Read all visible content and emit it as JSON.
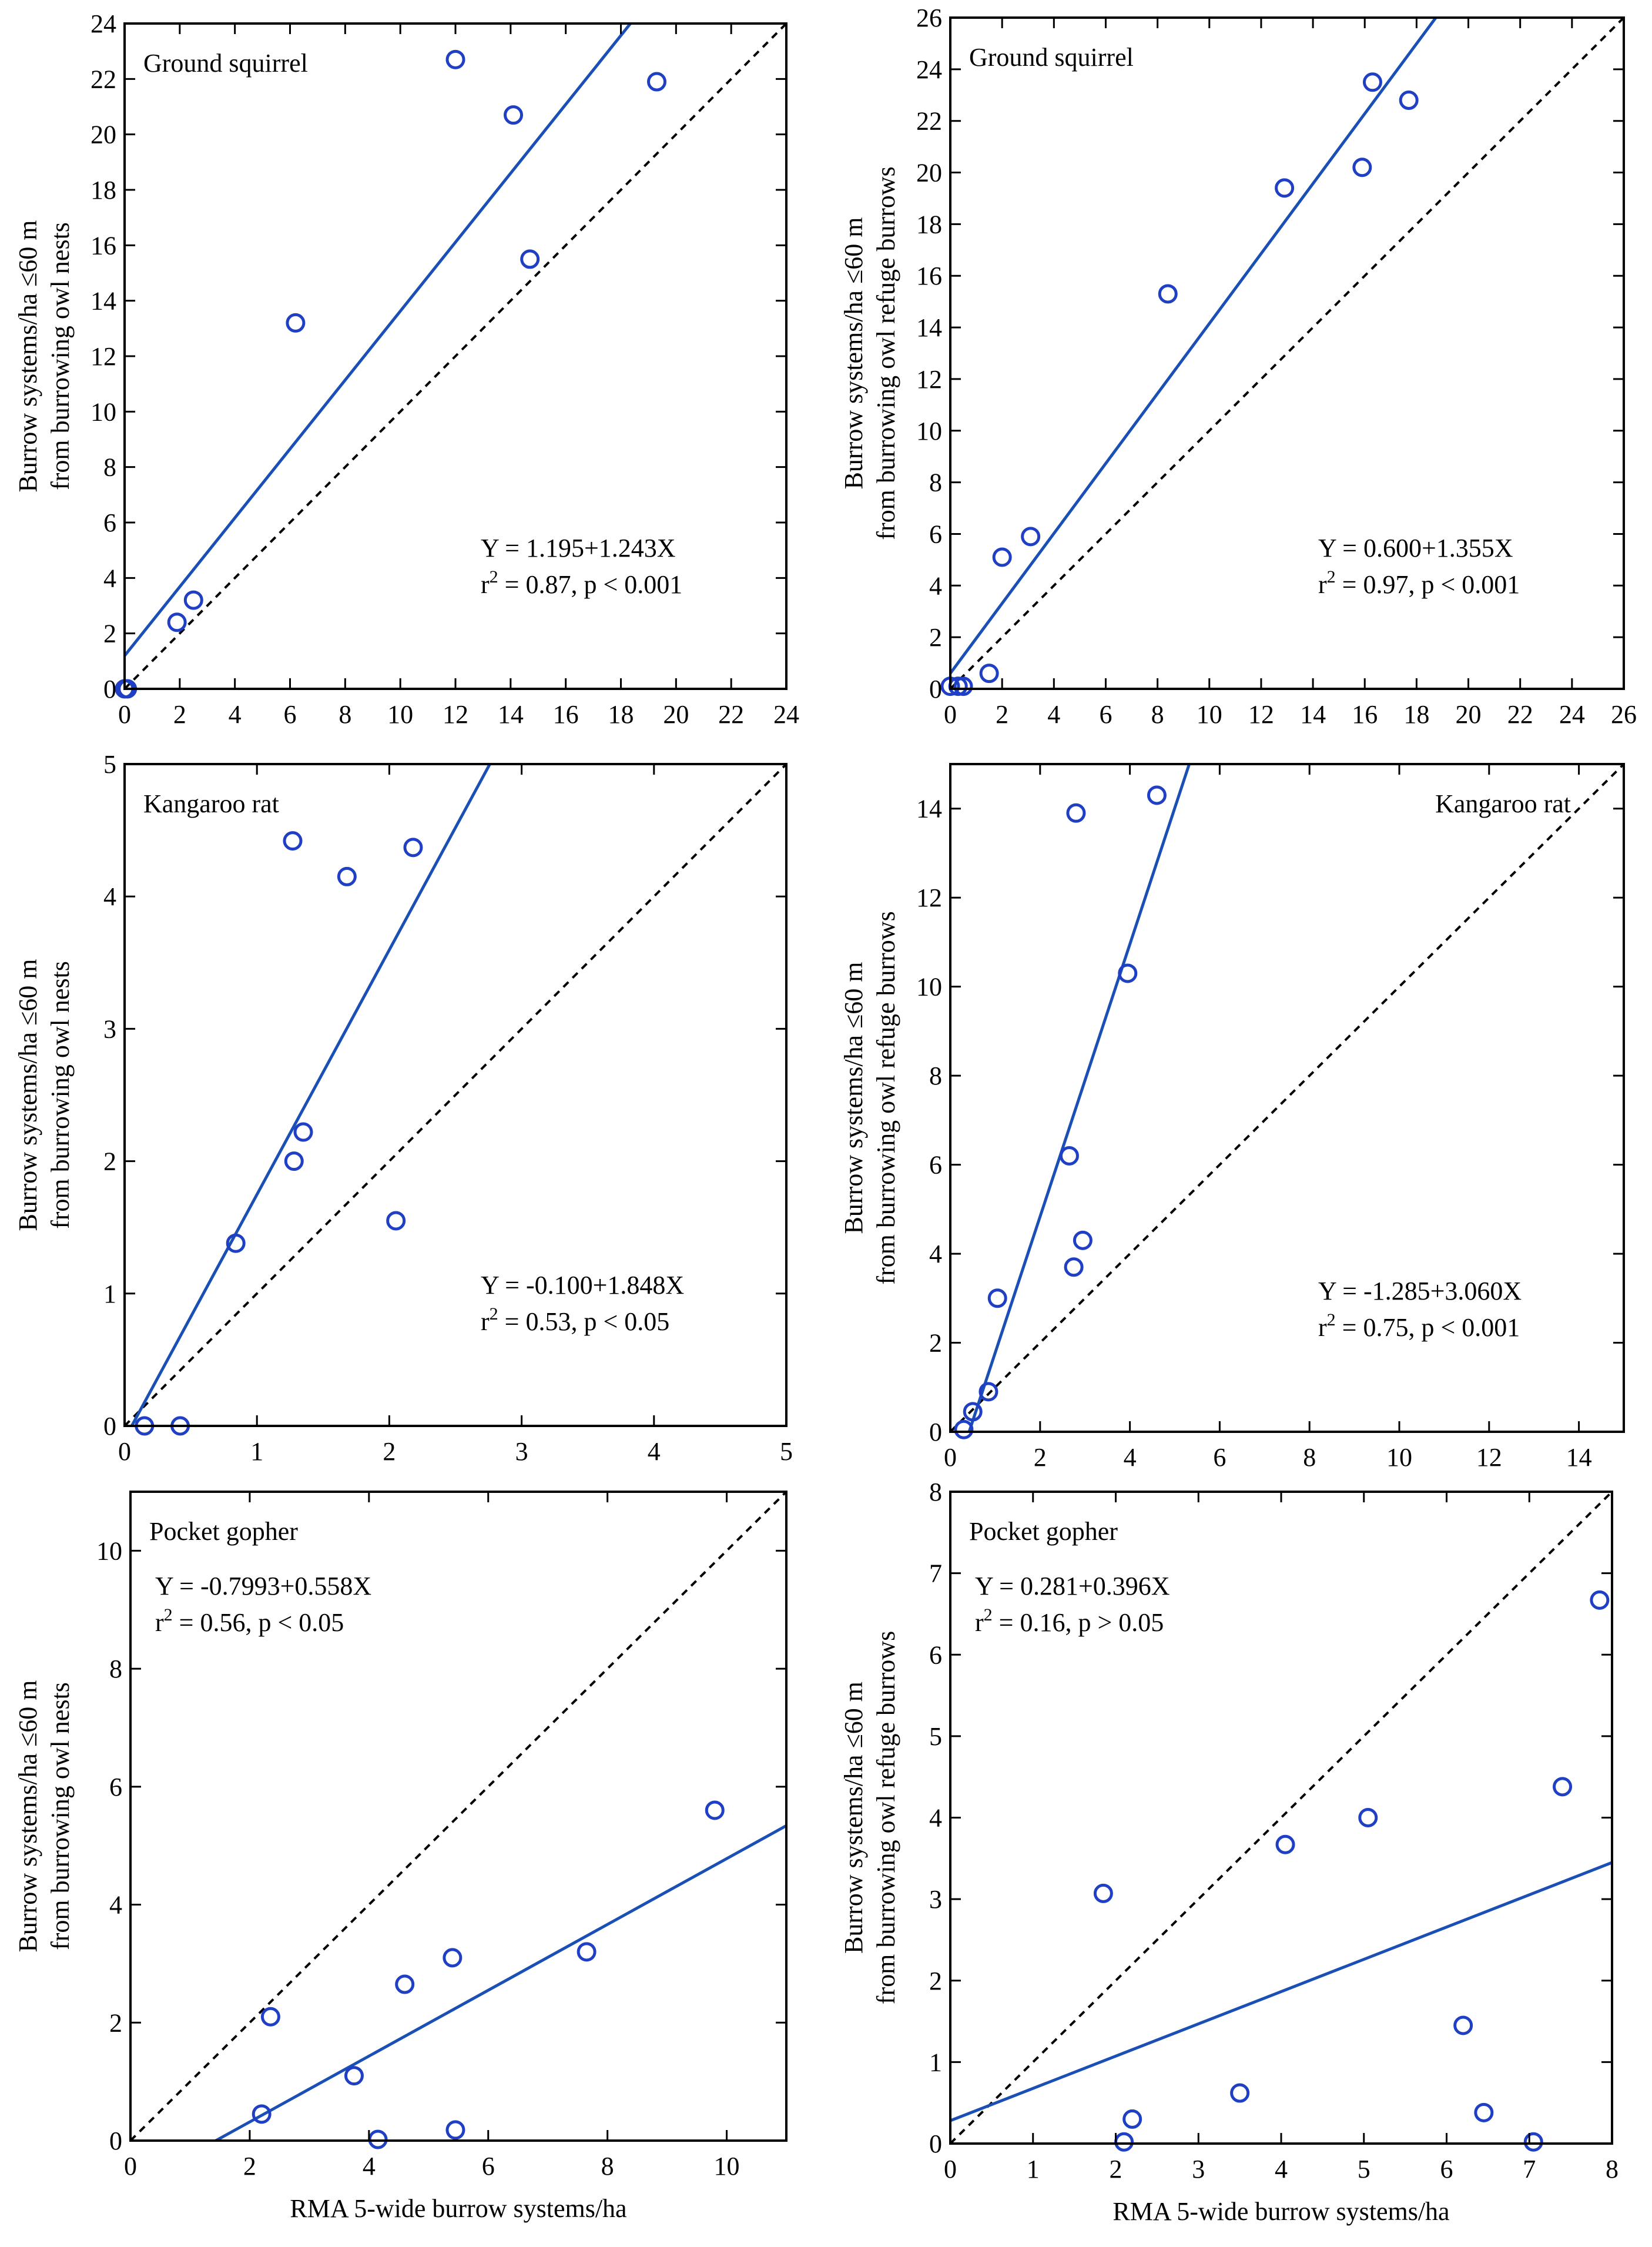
{
  "colors": {
    "marker": "#1f3fc4",
    "fit_line": "#1a4fb5",
    "identity_line": "#000000",
    "axes": "#000000"
  },
  "chart_data": [
    {
      "id": "gs_nests",
      "type": "scatter",
      "title": "Ground squirrel",
      "ylabel": [
        "Burrow systems/ha ≤60 m",
        "from burrowing owl nests"
      ],
      "xlabel": "",
      "xlim": [
        0,
        24
      ],
      "ylim": [
        0,
        24
      ],
      "xticks": [
        0,
        2,
        4,
        6,
        8,
        10,
        12,
        14,
        16,
        18,
        20,
        22,
        24
      ],
      "yticks": [
        0,
        2,
        4,
        6,
        8,
        10,
        12,
        14,
        16,
        18,
        20,
        22,
        24
      ],
      "x": [
        0.0,
        0.1,
        1.9,
        2.5,
        6.2,
        12.0,
        14.1,
        14.7,
        19.3
      ],
      "y": [
        0.0,
        0.0,
        2.4,
        3.2,
        13.2,
        22.7,
        20.7,
        15.5,
        21.9
      ],
      "fit": {
        "intercept": 1.195,
        "slope": 1.243
      },
      "equation": "Y = 1.195+1.243X",
      "r2_prefix": "r",
      "r2_text": " = 0.87, p < 0.001",
      "ann_pos": "bottom-right",
      "title_pos": "top-left"
    },
    {
      "id": "gs_refuge",
      "type": "scatter",
      "title": "Ground squirrel",
      "ylabel": [
        "Burrow systems/ha ≤60 m",
        "from burrowing owl refuge burrows"
      ],
      "xlabel": "",
      "xlim": [
        0,
        26
      ],
      "ylim": [
        0,
        26
      ],
      "xticks": [
        0,
        2,
        4,
        6,
        8,
        10,
        12,
        14,
        16,
        18,
        20,
        22,
        24,
        26
      ],
      "yticks": [
        0,
        2,
        4,
        6,
        8,
        10,
        12,
        14,
        16,
        18,
        20,
        22,
        24,
        26
      ],
      "x": [
        0.0,
        0.3,
        0.5,
        1.5,
        2.0,
        3.1,
        8.4,
        12.9,
        15.9,
        16.3,
        17.7
      ],
      "y": [
        0.1,
        0.1,
        0.1,
        0.6,
        5.1,
        5.9,
        15.3,
        19.4,
        20.2,
        23.5,
        22.8
      ],
      "fit": {
        "intercept": 0.6,
        "slope": 1.355
      },
      "equation": "Y = 0.600+1.355X",
      "r2_prefix": "r",
      "r2_text": " = 0.97, p < 0.001",
      "ann_pos": "bottom-right",
      "title_pos": "top-left"
    },
    {
      "id": "kr_nests",
      "type": "scatter",
      "title": "Kangaroo rat",
      "ylabel": [
        "Burrow systems/ha ≤60 m",
        "from burrowing owl nests"
      ],
      "xlabel": "",
      "xlim": [
        0,
        5
      ],
      "ylim": [
        0,
        5
      ],
      "xticks": [
        0,
        1,
        2,
        3,
        4,
        5
      ],
      "yticks": [
        0,
        1,
        2,
        3,
        4,
        5
      ],
      "x": [
        0.15,
        0.42,
        0.84,
        1.28,
        1.27,
        1.35,
        1.68,
        2.05,
        2.18
      ],
      "y": [
        0.0,
        0.0,
        1.38,
        2.0,
        4.42,
        2.22,
        4.15,
        1.55,
        4.37
      ],
      "fit": {
        "intercept": -0.1,
        "slope": 1.848
      },
      "equation": "Y = -0.100+1.848X",
      "r2_prefix": "r",
      "r2_text": " = 0.53, p < 0.05",
      "ann_pos": "bottom-right",
      "title_pos": "top-left"
    },
    {
      "id": "kr_refuge",
      "type": "scatter",
      "title": "Kangaroo rat",
      "ylabel": [
        "Burrow systems/ha ≤60 m",
        "from burrowing owl refuge burrows"
      ],
      "xlabel": "",
      "xlim": [
        0,
        15
      ],
      "ylim": [
        0,
        15
      ],
      "xticks": [
        0,
        2,
        4,
        6,
        8,
        10,
        12,
        14
      ],
      "yticks": [
        0,
        2,
        4,
        6,
        8,
        10,
        12,
        14
      ],
      "x": [
        0.3,
        0.5,
        0.85,
        1.05,
        2.65,
        2.75,
        2.8,
        2.95,
        3.95,
        4.6
      ],
      "y": [
        0.05,
        0.45,
        0.9,
        3.0,
        6.2,
        3.7,
        13.9,
        4.3,
        10.3,
        14.3
      ],
      "fit": {
        "intercept": -1.285,
        "slope": 3.06
      },
      "equation": "Y = -1.285+3.060X",
      "r2_prefix": "r",
      "r2_text": " = 0.75, p < 0.001",
      "ann_pos": "bottom-right",
      "title_pos": "top-right"
    },
    {
      "id": "pg_nests",
      "type": "scatter",
      "title": "Pocket gopher",
      "ylabel": [
        "Burrow systems/ha ≤60 m",
        "from burrowing owl nests"
      ],
      "xlabel": "RMA 5-wide burrow systems/ha",
      "xlim": [
        0,
        11
      ],
      "ylim": [
        0,
        11
      ],
      "xticks": [
        0,
        2,
        4,
        6,
        8,
        10
      ],
      "yticks": [
        0,
        2,
        4,
        6,
        8,
        10
      ],
      "x": [
        2.2,
        2.35,
        3.75,
        4.15,
        4.6,
        5.4,
        5.45,
        7.65,
        9.8
      ],
      "y": [
        0.45,
        2.1,
        1.1,
        0.02,
        2.65,
        3.1,
        0.18,
        3.2,
        5.6
      ],
      "fit": {
        "intercept": -0.7993,
        "slope": 0.558
      },
      "equation": "Y = -0.7993+0.558X",
      "r2_prefix": "r",
      "r2_text": " = 0.56, p < 0.05",
      "ann_pos": "top-left",
      "title_pos": "top-left"
    },
    {
      "id": "pg_refuge",
      "type": "scatter",
      "title": "Pocket gopher",
      "ylabel": [
        "Burrow systems/ha ≤60 m",
        "from burrowing owl refuge burrows"
      ],
      "xlabel": "RMA 5-wide burrow systems/ha",
      "xlim": [
        0,
        8
      ],
      "ylim": [
        0,
        8
      ],
      "xticks": [
        0,
        1,
        2,
        3,
        4,
        5,
        6,
        7,
        8
      ],
      "yticks": [
        0,
        1,
        2,
        3,
        4,
        5,
        6,
        7,
        8
      ],
      "x": [
        1.85,
        2.1,
        2.2,
        3.5,
        4.05,
        5.05,
        6.2,
        6.45,
        7.05,
        7.4,
        7.85
      ],
      "y": [
        3.07,
        0.02,
        0.3,
        0.62,
        3.67,
        4.0,
        1.45,
        0.38,
        0.02,
        4.38,
        6.67
      ],
      "fit": {
        "intercept": 0.281,
        "slope": 0.396
      },
      "equation": "Y = 0.281+0.396X",
      "r2_prefix": "r",
      "r2_text": " = 0.16, p > 0.05",
      "ann_pos": "top-left",
      "title_pos": "top-left"
    }
  ]
}
